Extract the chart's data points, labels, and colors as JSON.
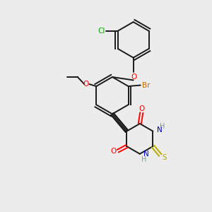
{
  "bg_color": "#ececec",
  "bond_color": "#1a1a1a",
  "colors": {
    "O": "#ff0000",
    "N": "#0000cc",
    "S": "#bbaa00",
    "Br": "#cc6600",
    "Cl": "#00aa00",
    "H": "#7a9a9a",
    "C": "#1a1a1a"
  },
  "figsize": [
    3.0,
    3.0
  ],
  "dpi": 100
}
